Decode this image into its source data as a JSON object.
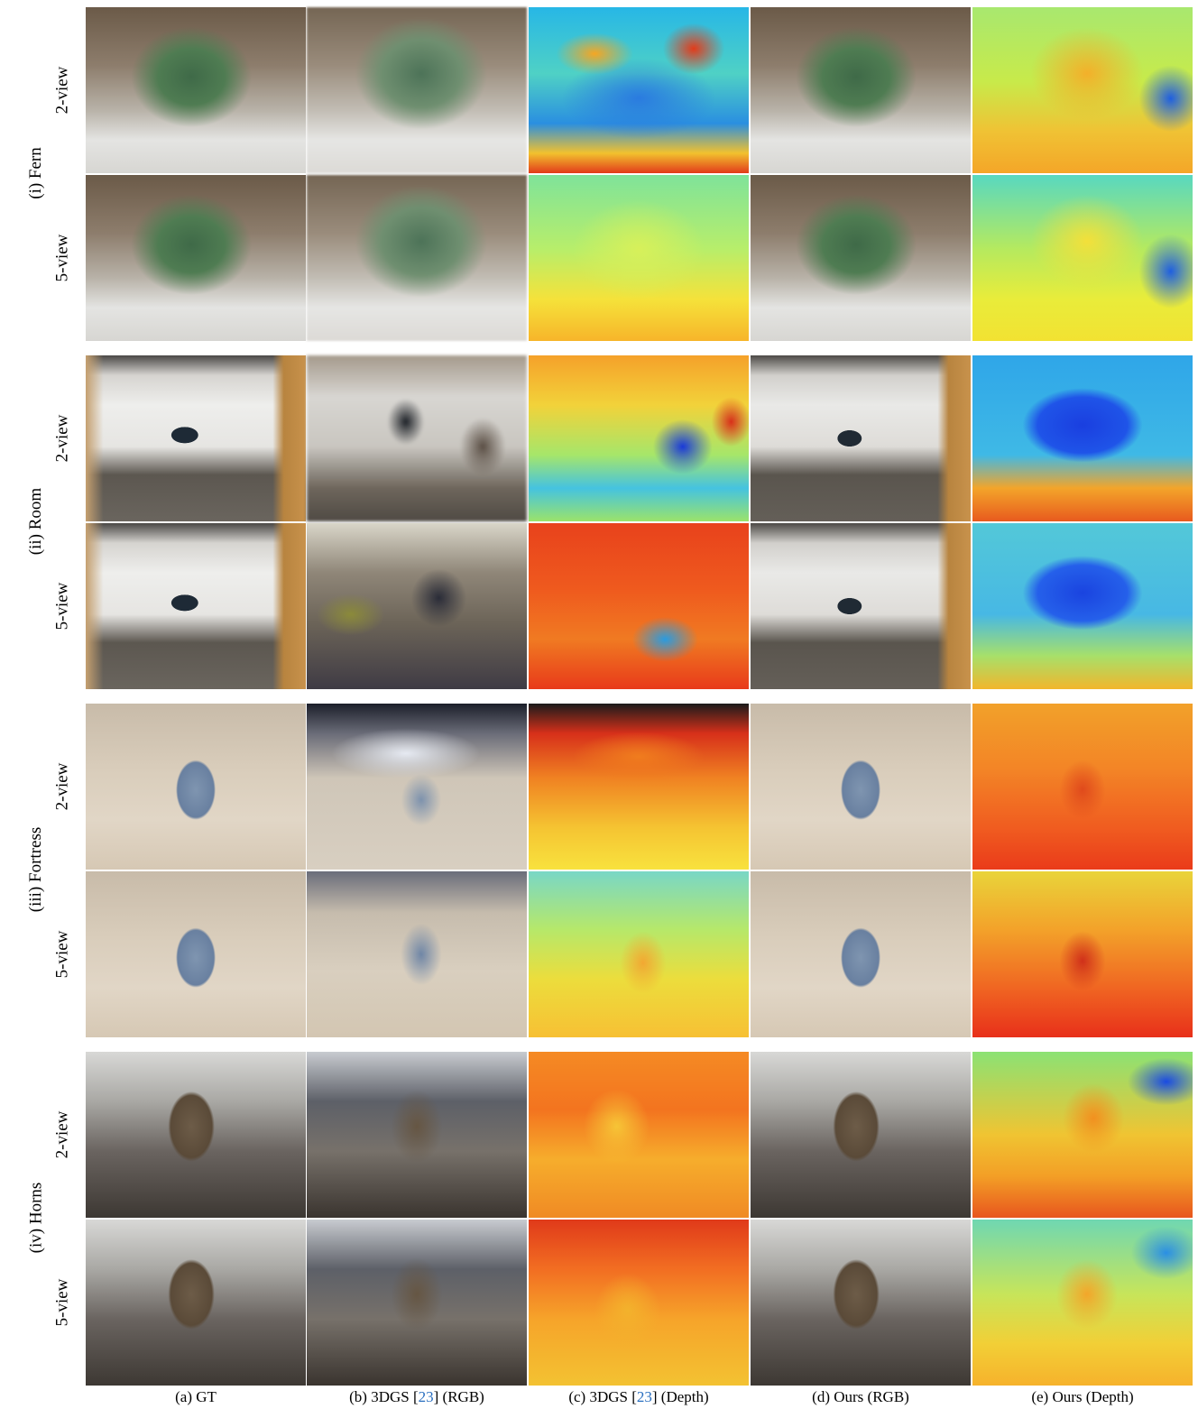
{
  "scenes": [
    {
      "label": "(i) Fern",
      "rows": [
        "2-view",
        "5-view"
      ]
    },
    {
      "label": "(ii) Room",
      "rows": [
        "2-view",
        "5-view"
      ]
    },
    {
      "label": "(iii) Fortress",
      "rows": [
        "2-view",
        "5-view"
      ]
    },
    {
      "label": "(iv) Horns",
      "rows": [
        "2-view",
        "5-view"
      ]
    }
  ],
  "captions": {
    "a": "(a) GT",
    "b_pre": "(b) 3DGS [",
    "b_ref": "23",
    "b_post": "] (RGB)",
    "c_pre": "(c) 3DGS [",
    "c_ref": "23",
    "c_post": "] (Depth)",
    "d": "(d) Ours (RGB)",
    "e": "(e) Ours (Depth)"
  },
  "colors": {
    "citation": "#2a6fc0",
    "background": "#ffffff"
  }
}
